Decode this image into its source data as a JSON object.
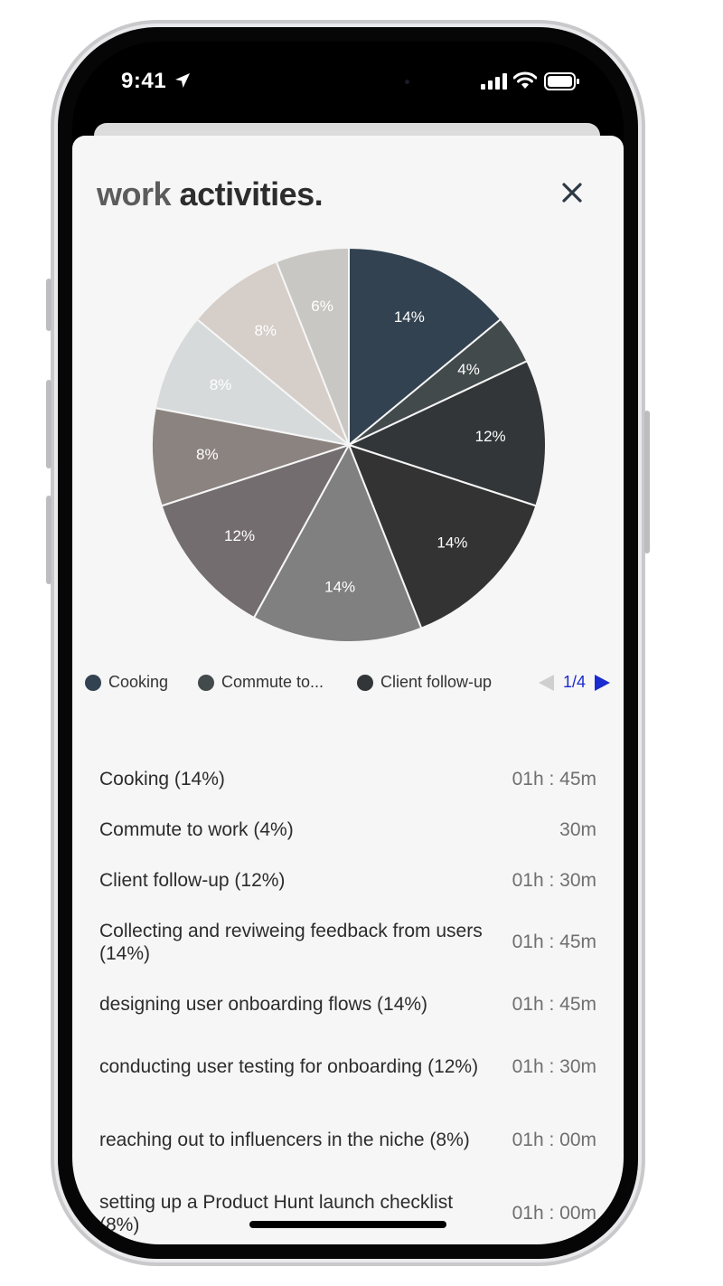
{
  "status_bar": {
    "time": "9:41"
  },
  "header": {
    "title_light": "work",
    "title_bold": "activities."
  },
  "chart_data": {
    "type": "pie",
    "slices": [
      {
        "label": "Cooking",
        "value": 14,
        "text": "14%",
        "color": "#334250"
      },
      {
        "label": "Commute to work",
        "value": 4,
        "text": "4%",
        "color": "#434a4c"
      },
      {
        "label": "Client follow-up",
        "value": 12,
        "text": "12%",
        "color": "#323638"
      },
      {
        "label": "Collecting and reviweing feedback from users",
        "value": 14,
        "text": "14%",
        "color": "#333333"
      },
      {
        "label": "designing user onboarding flows",
        "value": 14,
        "text": "14%",
        "color": "#808080"
      },
      {
        "label": "conducting user testing for onboarding",
        "value": 12,
        "text": "12%",
        "color": "#736d70"
      },
      {
        "label": "reaching out to influencers in the niche",
        "value": 8,
        "text": "8%",
        "color": "#8b837f"
      },
      {
        "label": "setting up a Product Hunt launch checklist",
        "value": 8,
        "text": "8%",
        "color": "#d7dadb"
      },
      {
        "label": "",
        "value": 8,
        "text": "8%",
        "color": "#d5cec9"
      },
      {
        "label": "",
        "value": 6,
        "text": "6%",
        "color": "#c8c7c3"
      }
    ]
  },
  "legend": {
    "items": [
      {
        "label": "Cooking",
        "color": "#334250"
      },
      {
        "label": "Commute to...",
        "color": "#434a4c"
      },
      {
        "label": "Client follow-up",
        "color": "#323638"
      }
    ],
    "page": "1/4"
  },
  "activities": [
    {
      "label": "Cooking (14%)",
      "duration": "01h : 45m"
    },
    {
      "label": "Commute to work (4%)",
      "duration": "30m"
    },
    {
      "label": "Client follow-up (12%)",
      "duration": "01h : 30m"
    },
    {
      "label": "Collecting and reviweing feedback from users (14%)",
      "duration": "01h : 45m"
    },
    {
      "label": "designing user onboarding flows (14%)",
      "duration": "01h : 45m"
    },
    {
      "label": "conducting user testing for onboarding (12%)",
      "duration": "01h : 30m"
    },
    {
      "label": "reaching out to influencers in the niche (8%)",
      "duration": "01h : 00m"
    },
    {
      "label": "setting up a Product Hunt launch checklist (8%)",
      "duration": "01h : 00m"
    }
  ]
}
